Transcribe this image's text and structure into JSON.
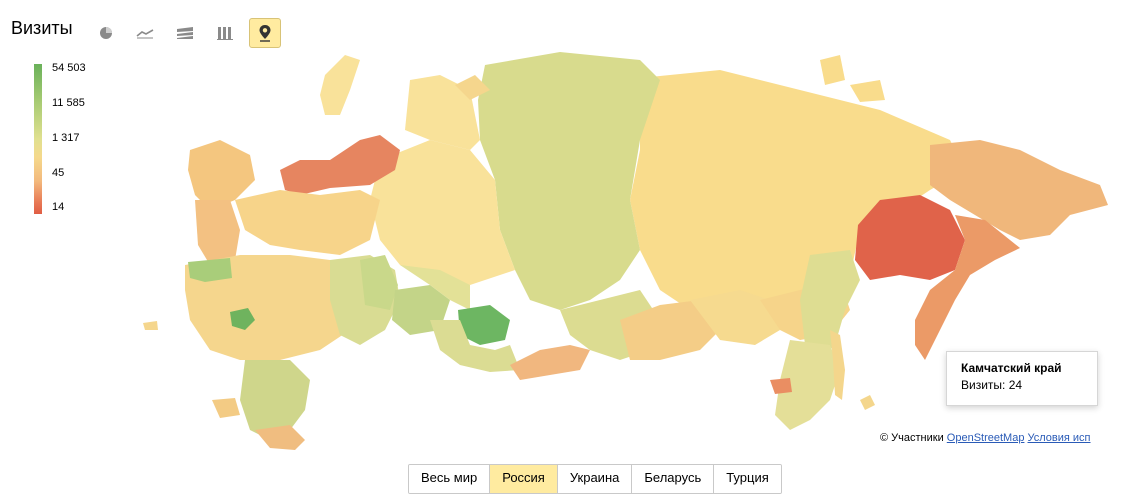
{
  "header": {
    "title": "Визиты",
    "tools": [
      {
        "icon": "pie-chart-icon",
        "active": false
      },
      {
        "icon": "line-chart-icon",
        "active": false
      },
      {
        "icon": "area-chart-icon",
        "active": false
      },
      {
        "icon": "bar-chart-icon",
        "active": false
      },
      {
        "icon": "map-pin-icon",
        "active": true
      }
    ]
  },
  "legend": {
    "labels": [
      "54 503",
      "11 585",
      "1 317",
      "45",
      "14"
    ],
    "colors": [
      "#6ab15a",
      "#a7cb73",
      "#e0e08f",
      "#f5d98c",
      "#f3b97d",
      "#e87a56",
      "#e05d44"
    ]
  },
  "tooltip": {
    "title": "Камчатский край",
    "metric_label": "Визиты: 24"
  },
  "attribution": {
    "prefix": "© Участники",
    "link1": "OpenStreetMap",
    "link2": "Условия исп"
  },
  "tabs": [
    {
      "label": "Весь мир",
      "active": false
    },
    {
      "label": "Россия",
      "active": true
    },
    {
      "label": "Украина",
      "active": false
    },
    {
      "label": "Беларусь",
      "active": false
    },
    {
      "label": "Турция",
      "active": false
    }
  ]
}
